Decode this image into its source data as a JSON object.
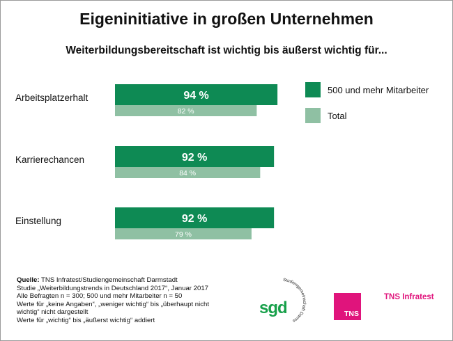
{
  "title": "Eigeninitiative in großen Unternehmen",
  "subtitle": "Weiterbildungsbereitschaft ist wichtig bis äußerst wichtig für...",
  "colors": {
    "series_primary": "#0e8a54",
    "series_total": "#8fc0a3",
    "tns_magenta": "#e0147c",
    "sgd_green": "#17a04a"
  },
  "chart_data": {
    "type": "bar",
    "orientation": "horizontal",
    "categories": [
      "Arbeitsplatzerhalt",
      "Karrierechancen",
      "Einstellung"
    ],
    "series": [
      {
        "name": "500 und mehr Mitarbeiter",
        "values": [
          94,
          92,
          92
        ],
        "labels": [
          "94 %",
          "92 %",
          "92 %"
        ]
      },
      {
        "name": "Total",
        "values": [
          82,
          84,
          79
        ],
        "labels": [
          "82 %",
          "84 %",
          "79 %"
        ]
      }
    ],
    "xlim": [
      0,
      100
    ],
    "grid": false,
    "legend_position": "right"
  },
  "source": {
    "label": "Quelle:",
    "lines": [
      "TNS Infratest/Studiengemeinschaft Darmstadt",
      "Studie „Weiterbildungstrends in Deutschland 2017“, Januar 2017",
      "Alle Befragten n = 300; 500 und mehr Mitarbeiter n = 50",
      "Werte für „keine Angaben“, „weniger wichtig“ bis „überhaupt nicht",
      "wichtig“ nicht dargestellt",
      "Werte für „wichtig“ bis „äußerst wichtig“ addiert"
    ]
  },
  "logos": {
    "sgd_mark": "sgd",
    "sgd_arc_text": "Studiengemeinschaft Darmstadt",
    "tns_box": "TNS",
    "tns_text": "TNS Infratest"
  }
}
